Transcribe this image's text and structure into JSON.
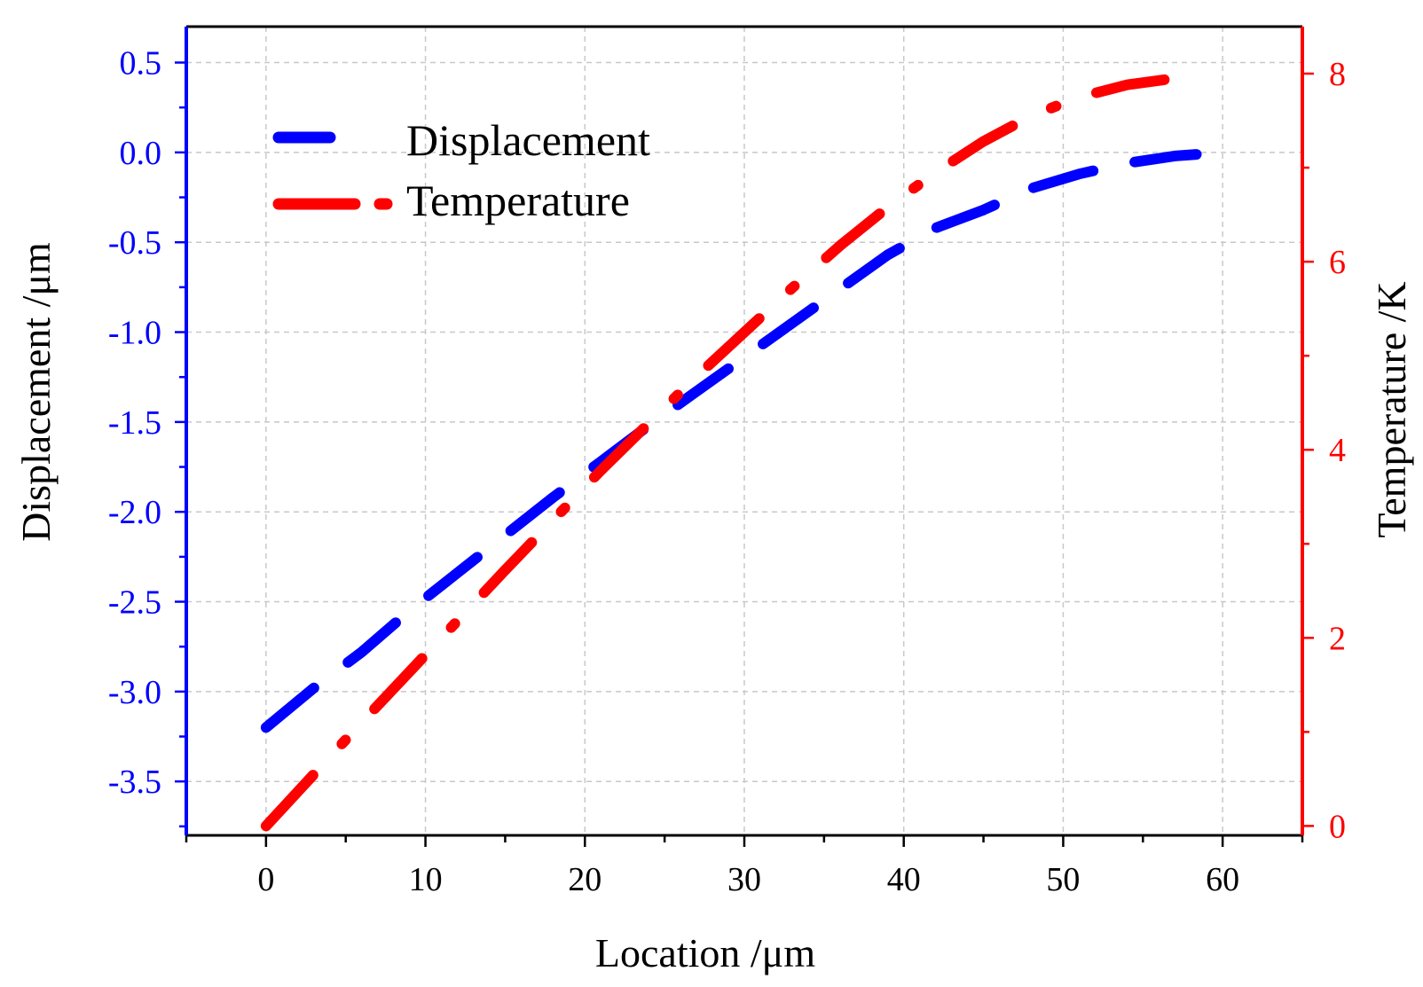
{
  "chart_data": {
    "type": "line",
    "title": "",
    "xlabel": "Location /μm",
    "ylabel_left": "Displacement /μm",
    "ylabel_right": "Temperature /K",
    "xlim": [
      -5,
      65
    ],
    "ylim_left": [
      -3.8,
      0.7
    ],
    "ylim_right": [
      -0.1,
      8.5
    ],
    "grid": true,
    "legend_position": "top-left",
    "x_ticks": [
      0,
      10,
      20,
      30,
      40,
      50,
      60
    ],
    "x_tick_labels": [
      "0",
      "10",
      "20",
      "30",
      "40",
      "50",
      "60"
    ],
    "left_ticks": [
      0.5,
      0.0,
      -0.5,
      -1.0,
      -1.5,
      -2.0,
      -2.5,
      -3.0,
      -3.5
    ],
    "left_tick_labels": [
      "0.5",
      "0.0",
      "-0.5",
      "-1.0",
      "-1.5",
      "-2.0",
      "-2.5",
      "-3.0",
      "-3.5"
    ],
    "right_ticks": [
      0,
      2,
      4,
      6,
      8
    ],
    "right_tick_labels": [
      "0",
      "2",
      "4",
      "6",
      "8"
    ],
    "series": [
      {
        "name": "Displacement",
        "axis": "left",
        "color": "#0000ff",
        "style": "dash",
        "x": [
          0,
          3,
          6,
          9,
          12,
          15,
          18,
          21,
          24,
          27,
          30,
          33,
          36,
          39,
          42,
          45,
          48,
          51,
          54,
          57,
          60
        ],
        "values": [
          -3.2,
          -2.98,
          -2.78,
          -2.55,
          -2.34,
          -2.13,
          -1.92,
          -1.72,
          -1.52,
          -1.33,
          -1.14,
          -0.95,
          -0.76,
          -0.57,
          -0.42,
          -0.32,
          -0.2,
          -0.12,
          -0.06,
          -0.02,
          0.0
        ]
      },
      {
        "name": "Temperature",
        "axis": "right",
        "color": "#ff0000",
        "style": "dash-dot",
        "x": [
          0,
          3,
          6,
          9,
          12,
          15,
          18,
          21,
          24,
          27,
          30,
          33,
          36,
          39,
          42,
          45,
          48,
          51,
          54,
          57,
          58
        ],
        "values": [
          0.0,
          0.55,
          1.1,
          1.64,
          2.18,
          2.72,
          3.25,
          3.78,
          4.28,
          4.78,
          5.25,
          5.72,
          6.17,
          6.58,
          6.95,
          7.28,
          7.55,
          7.75,
          7.88,
          7.95,
          7.97
        ]
      }
    ]
  }
}
